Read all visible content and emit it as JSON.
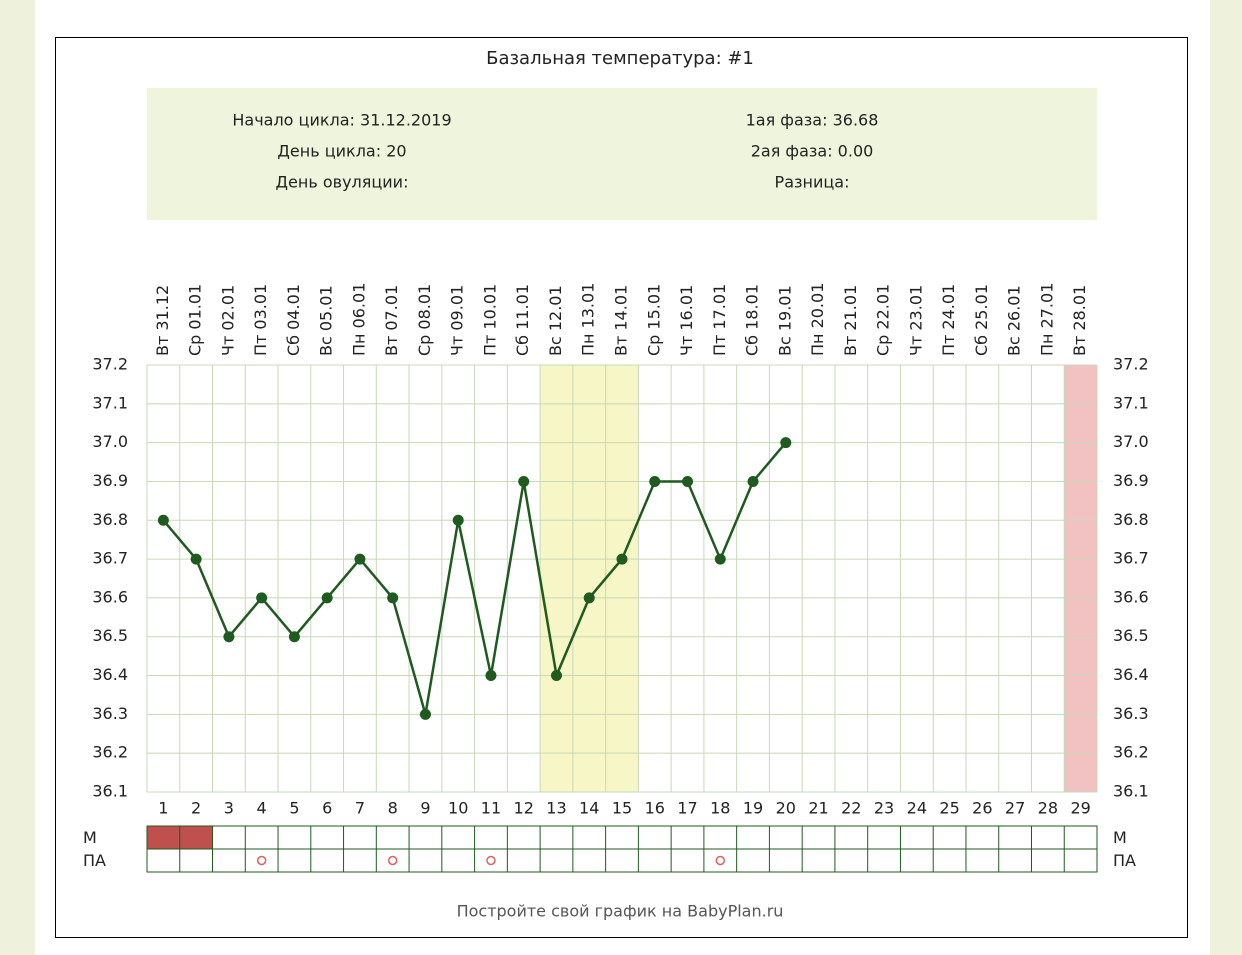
{
  "chart_data": {
    "type": "line",
    "title": "Базальная температура: #1",
    "info_left": [
      "Начало цикла: 31.12.2019",
      "День цикла: 20",
      "День овуляции:"
    ],
    "info_right": [
      "1ая фаза: 36.68",
      "2ая фаза: 0.00",
      "Разница:"
    ],
    "categories": [
      "Вт 31.12",
      "Ср 01.01",
      "Чт 02.01",
      "Пт 03.01",
      "Сб 04.01",
      "Вс 05.01",
      "Пн 06.01",
      "Вт 07.01",
      "Ср 08.01",
      "Чт 09.01",
      "Пт 10.01",
      "Сб 11.01",
      "Вс 12.01",
      "Пн 13.01",
      "Вт 14.01",
      "Ср 15.01",
      "Чт 16.01",
      "Пт 17.01",
      "Сб 18.01",
      "Вс 19.01",
      "Пн 20.01",
      "Вт 21.01",
      "Ср 22.01",
      "Чт 23.01",
      "Пт 24.01",
      "Сб 25.01",
      "Вс 26.01",
      "Пн 27.01",
      "Вт 28.01"
    ],
    "day_numbers": [
      1,
      2,
      3,
      4,
      5,
      6,
      7,
      8,
      9,
      10,
      11,
      12,
      13,
      14,
      15,
      16,
      17,
      18,
      19,
      20,
      21,
      22,
      23,
      24,
      25,
      26,
      27,
      28,
      29
    ],
    "values": [
      36.8,
      36.7,
      36.5,
      36.6,
      36.5,
      36.6,
      36.7,
      36.6,
      36.3,
      36.8,
      36.4,
      36.9,
      36.4,
      36.6,
      36.7,
      36.9,
      36.9,
      36.7,
      36.9,
      37.0,
      null,
      null,
      null,
      null,
      null,
      null,
      null,
      null,
      null
    ],
    "color": "#1f5a1f",
    "ylim": [
      36.1,
      37.2
    ],
    "yticks": [
      36.1,
      36.2,
      36.3,
      36.4,
      36.5,
      36.6,
      36.7,
      36.8,
      36.9,
      {
        "value": 37.0,
        "label": "37.0"
      },
      37.1,
      37.2
    ],
    "grid": true,
    "bands": [
      {
        "from": 13,
        "to": 15,
        "color": "#f6f6c6"
      },
      {
        "from": 29,
        "to": 29,
        "color": "#f2c2c2"
      }
    ],
    "rows": [
      {
        "name": "М",
        "days": [
          1,
          2
        ],
        "color": "#c0504d"
      },
      {
        "name": "ПА",
        "days": [
          4,
          8,
          11,
          18
        ],
        "color": "#e06060"
      }
    ],
    "footer": "Постройте свой график на BabyPlan.ru"
  }
}
